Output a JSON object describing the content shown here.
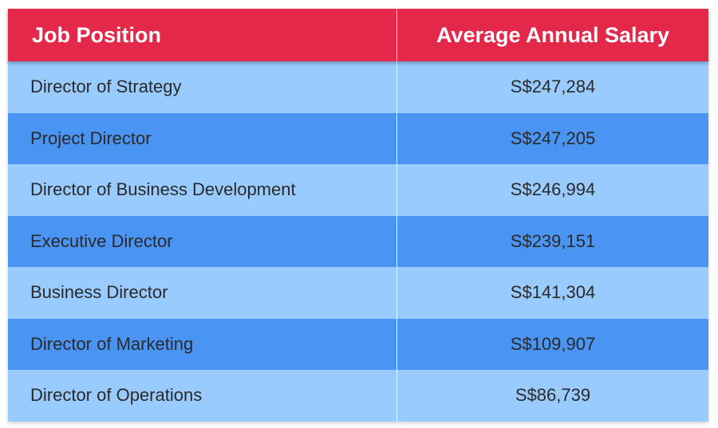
{
  "table": {
    "headers": {
      "position": "Job Position",
      "salary": "Average Annual Salary"
    },
    "rows": [
      {
        "position": "Director of Strategy",
        "salary": "S$247,284"
      },
      {
        "position": "Project Director",
        "salary": "S$247,205"
      },
      {
        "position": "Director of Business Development",
        "salary": "S$246,994"
      },
      {
        "position": "Executive Director",
        "salary": "S$239,151"
      },
      {
        "position": "Business Director",
        "salary": "S$141,304"
      },
      {
        "position": "Director of Marketing",
        "salary": "S$109,907"
      },
      {
        "position": "Director of Operations",
        "salary": "S$86,739"
      }
    ]
  },
  "colors": {
    "header_bg": "#e4284a",
    "row_light": "#99cbff",
    "row_dark": "#4a94f4"
  }
}
